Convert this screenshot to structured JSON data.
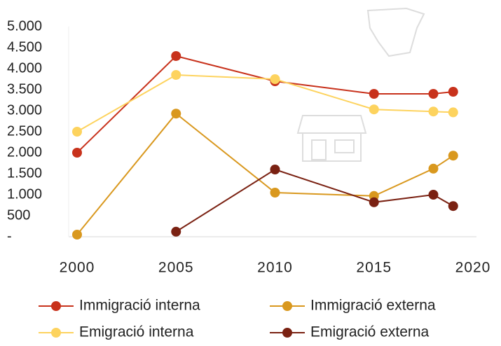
{
  "chart_data": {
    "type": "line",
    "x": [
      2000,
      2005,
      2010,
      2015,
      2018,
      2019
    ],
    "xlim": [
      2000,
      2020
    ],
    "xticks": [
      2000,
      2005,
      2010,
      2015,
      2020
    ],
    "ylim": [
      0,
      5000
    ],
    "yticks": [
      {
        "value": 0,
        "label": "-"
      },
      500,
      {
        "value": 1000,
        "label": "1.000"
      },
      {
        "value": 1500,
        "label": "1.500"
      },
      {
        "value": 2000,
        "label": "2.000"
      },
      {
        "value": 2500,
        "label": "2.500"
      },
      {
        "value": 3000,
        "label": "3.000"
      },
      {
        "value": 3500,
        "label": "3.500"
      },
      {
        "value": 4000,
        "label": "4.000"
      },
      {
        "value": 4500,
        "label": "4.500"
      },
      {
        "value": 5000,
        "label": "5.000"
      }
    ],
    "series": [
      {
        "name": "Immigració interna",
        "color": "#c8321c",
        "values": [
          2000,
          4300,
          3700,
          3400,
          3400,
          3450
        ]
      },
      {
        "name": "Immigració externa",
        "color": "#d9981e",
        "values": [
          50,
          2930,
          1050,
          970,
          1620,
          1930
        ]
      },
      {
        "name": "Emigració interna",
        "color": "#fdd35e",
        "values": [
          2500,
          3850,
          3750,
          3030,
          2980,
          2960
        ]
      },
      {
        "name": "Emigració externa",
        "color": "#7a2112",
        "values": [
          null,
          120,
          1600,
          820,
          1000,
          730
        ]
      }
    ]
  }
}
